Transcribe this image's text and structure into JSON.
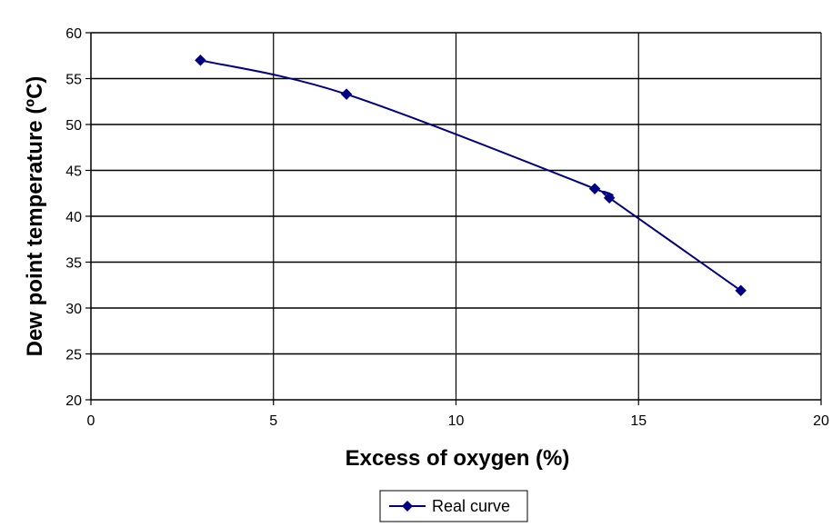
{
  "chart_data": {
    "type": "line",
    "title": "",
    "xlabel": "Excess of oxygen (%)",
    "ylabel": "Dew point temperature (ºC)",
    "xlim": [
      0,
      20
    ],
    "ylim": [
      20,
      60
    ],
    "x_ticks": [
      0,
      5,
      10,
      15,
      20
    ],
    "y_ticks": [
      20,
      25,
      30,
      35,
      40,
      45,
      50,
      55,
      60
    ],
    "grid": true,
    "legend_position": "bottom",
    "series": [
      {
        "name": "Real curve",
        "color": "#000080",
        "marker": "diamond",
        "smooth": true,
        "x": [
          3.0,
          7.0,
          13.8,
          14.2,
          17.8
        ],
        "y": [
          57.0,
          53.3,
          43.0,
          42.0,
          31.9
        ]
      }
    ]
  }
}
